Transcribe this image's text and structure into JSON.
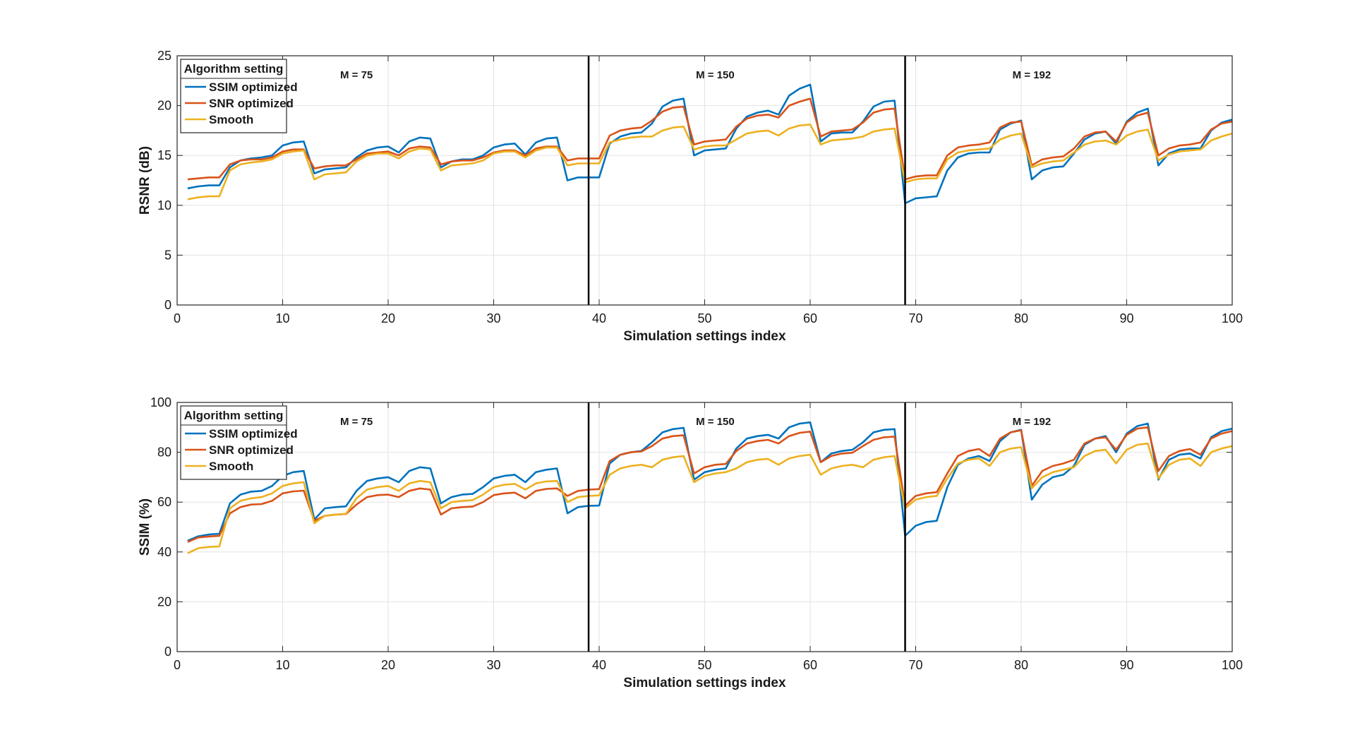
{
  "chart_data": [
    {
      "type": "line",
      "ylabel": "RSNR (dB)",
      "xlabel": "Simulation settings index",
      "xlim": [
        0,
        100
      ],
      "ylim": [
        0,
        25
      ],
      "xticks": [
        0,
        10,
        20,
        30,
        40,
        50,
        60,
        70,
        80,
        90,
        100
      ],
      "yticks": [
        0,
        5,
        10,
        15,
        20,
        25
      ],
      "grid": true,
      "legend": {
        "title": "Algorithm setting",
        "position": "top-left"
      },
      "vlines": [
        39,
        69
      ],
      "region_labels": [
        {
          "text": "M = 75",
          "x": 17
        },
        {
          "text": "M = 150",
          "x": 51
        },
        {
          "text": "M = 192",
          "x": 81
        }
      ],
      "x_start": 1,
      "series": [
        {
          "name": "SSIM optimized",
          "color": "#0072BD",
          "values": [
            11.7,
            11.9,
            12.0,
            12.0,
            13.8,
            14.5,
            14.7,
            14.8,
            15.0,
            16.0,
            16.3,
            16.4,
            13.2,
            13.6,
            13.7,
            13.8,
            14.8,
            15.5,
            15.8,
            15.9,
            15.3,
            16.4,
            16.8,
            16.7,
            13.8,
            14.4,
            14.6,
            14.6,
            15.0,
            15.8,
            16.1,
            16.2,
            15.1,
            16.3,
            16.7,
            16.8,
            12.5,
            12.8,
            12.8,
            12.8,
            16.2,
            16.9,
            17.2,
            17.3,
            18.2,
            19.9,
            20.5,
            20.7,
            15.0,
            15.5,
            15.6,
            15.7,
            17.7,
            18.9,
            19.3,
            19.5,
            19.1,
            21.0,
            21.7,
            22.1,
            16.4,
            17.2,
            17.3,
            17.3,
            18.4,
            19.9,
            20.4,
            20.5,
            10.2,
            10.7,
            10.8,
            10.9,
            13.5,
            14.8,
            15.2,
            15.3,
            15.3,
            17.6,
            18.2,
            18.5,
            12.6,
            13.5,
            13.8,
            13.9,
            15.2,
            16.6,
            17.2,
            17.4,
            16.2,
            18.4,
            19.3,
            19.7,
            14.0,
            15.2,
            15.6,
            15.7,
            15.7,
            17.5,
            18.3,
            18.6
          ]
        },
        {
          "name": "SNR optimized",
          "color": "#D95319",
          "values": [
            12.6,
            12.7,
            12.8,
            12.8,
            14.1,
            14.5,
            14.6,
            14.6,
            14.8,
            15.4,
            15.6,
            15.6,
            13.7,
            13.9,
            14.0,
            14.0,
            14.6,
            15.2,
            15.3,
            15.4,
            15.0,
            15.7,
            15.9,
            15.8,
            14.1,
            14.4,
            14.5,
            14.5,
            14.8,
            15.3,
            15.5,
            15.5,
            15.0,
            15.7,
            15.9,
            15.9,
            14.5,
            14.7,
            14.7,
            14.7,
            17.0,
            17.5,
            17.7,
            17.8,
            18.5,
            19.4,
            19.8,
            19.9,
            16.1,
            16.4,
            16.5,
            16.6,
            17.9,
            18.7,
            19.0,
            19.1,
            18.8,
            20.0,
            20.4,
            20.7,
            16.9,
            17.4,
            17.5,
            17.6,
            18.3,
            19.3,
            19.6,
            19.7,
            12.6,
            12.9,
            13.0,
            13.0,
            15.0,
            15.8,
            16.0,
            16.1,
            16.3,
            17.8,
            18.3,
            18.4,
            14.0,
            14.6,
            14.8,
            14.9,
            15.7,
            16.9,
            17.3,
            17.4,
            16.4,
            18.3,
            19.0,
            19.3,
            15.0,
            15.7,
            16.0,
            16.1,
            16.3,
            17.6,
            18.2,
            18.4
          ]
        },
        {
          "name": "Smooth",
          "color": "#EDB120",
          "values": [
            10.6,
            10.8,
            10.9,
            10.9,
            13.5,
            14.1,
            14.3,
            14.4,
            14.6,
            15.2,
            15.4,
            15.5,
            12.6,
            13.1,
            13.2,
            13.3,
            14.4,
            15.0,
            15.2,
            15.2,
            14.7,
            15.4,
            15.7,
            15.6,
            13.5,
            14.0,
            14.1,
            14.2,
            14.5,
            15.2,
            15.4,
            15.4,
            14.8,
            15.5,
            15.8,
            15.8,
            14.0,
            14.2,
            14.2,
            14.2,
            16.3,
            16.6,
            16.8,
            16.9,
            16.9,
            17.5,
            17.8,
            17.9,
            15.6,
            15.9,
            16.0,
            16.0,
            16.6,
            17.2,
            17.4,
            17.5,
            17.0,
            17.7,
            18.0,
            18.1,
            16.1,
            16.5,
            16.6,
            16.7,
            16.9,
            17.4,
            17.6,
            17.7,
            12.3,
            12.6,
            12.7,
            12.7,
            14.6,
            15.3,
            15.5,
            15.6,
            15.7,
            16.6,
            17.0,
            17.2,
            13.8,
            14.2,
            14.4,
            14.5,
            15.3,
            16.1,
            16.4,
            16.5,
            16.1,
            17.0,
            17.4,
            17.6,
            14.5,
            15.1,
            15.4,
            15.5,
            15.6,
            16.5,
            16.9,
            17.2
          ]
        }
      ]
    },
    {
      "type": "line",
      "ylabel": "SSIM (%)",
      "xlabel": "Simulation settings index",
      "xlim": [
        0,
        100
      ],
      "ylim": [
        0,
        100
      ],
      "xticks": [
        0,
        10,
        20,
        30,
        40,
        50,
        60,
        70,
        80,
        90,
        100
      ],
      "yticks": [
        0,
        20,
        40,
        60,
        80,
        100
      ],
      "grid": true,
      "legend": {
        "title": "Algorithm setting",
        "position": "top-left"
      },
      "vlines": [
        39,
        69
      ],
      "region_labels": [
        {
          "text": "M = 75",
          "x": 17
        },
        {
          "text": "M = 150",
          "x": 51
        },
        {
          "text": "M = 192",
          "x": 81
        }
      ],
      "x_start": 1,
      "series": [
        {
          "name": "SSIM optimized",
          "color": "#0072BD",
          "values": [
            44.5,
            46.3,
            47.0,
            47.3,
            59.5,
            63.0,
            64.2,
            64.5,
            66.5,
            70.5,
            72.0,
            72.5,
            53.0,
            57.5,
            58.0,
            58.3,
            64.5,
            68.5,
            69.5,
            70.0,
            68.0,
            72.5,
            74.0,
            73.5,
            59.5,
            62.0,
            63.0,
            63.3,
            66.0,
            69.5,
            70.5,
            71.0,
            68.0,
            72.0,
            73.0,
            73.5,
            55.5,
            58.0,
            58.5,
            58.6,
            75.5,
            79.0,
            80.0,
            80.5,
            84.0,
            88.0,
            89.3,
            89.8,
            69.0,
            72.0,
            73.0,
            73.5,
            81.5,
            85.5,
            86.5,
            87.0,
            85.5,
            90.0,
            91.5,
            92.0,
            76.0,
            79.5,
            80.5,
            81.0,
            84.0,
            88.0,
            89.0,
            89.3,
            46.5,
            50.5,
            52.0,
            52.5,
            66.0,
            75.0,
            77.5,
            78.5,
            76.5,
            84.5,
            88.0,
            89.0,
            61.0,
            67.0,
            70.0,
            71.0,
            74.5,
            83.0,
            85.5,
            86.5,
            80.0,
            87.5,
            90.5,
            91.5,
            69.0,
            77.0,
            79.0,
            79.5,
            77.5,
            86.0,
            88.5,
            89.5
          ]
        },
        {
          "name": "SNR optimized",
          "color": "#D95319",
          "values": [
            44.0,
            45.8,
            46.2,
            46.5,
            55.5,
            58.0,
            59.0,
            59.2,
            60.5,
            63.5,
            64.3,
            64.6,
            52.5,
            54.5,
            55.0,
            55.2,
            59.0,
            62.0,
            62.8,
            63.0,
            62.0,
            64.5,
            65.5,
            65.0,
            55.0,
            57.5,
            58.0,
            58.2,
            60.0,
            62.8,
            63.5,
            63.8,
            61.5,
            64.5,
            65.3,
            65.5,
            62.5,
            64.5,
            65.0,
            65.2,
            76.5,
            79.0,
            80.0,
            80.3,
            82.5,
            85.5,
            86.5,
            86.8,
            71.5,
            74.0,
            75.0,
            75.3,
            80.5,
            83.5,
            84.5,
            85.0,
            83.5,
            86.5,
            87.8,
            88.3,
            76.0,
            78.5,
            79.5,
            79.8,
            82.5,
            85.0,
            86.0,
            86.3,
            58.5,
            62.5,
            63.5,
            64.0,
            71.5,
            78.5,
            80.5,
            81.3,
            78.5,
            85.5,
            88.0,
            88.8,
            66.5,
            72.5,
            74.5,
            75.5,
            77.0,
            83.5,
            85.5,
            86.0,
            81.0,
            87.0,
            89.5,
            90.0,
            72.5,
            78.5,
            80.5,
            81.3,
            79.0,
            85.5,
            87.5,
            88.5
          ]
        },
        {
          "name": "Smooth",
          "color": "#EDB120",
          "values": [
            39.5,
            41.5,
            42.0,
            42.2,
            57.5,
            60.5,
            61.5,
            62.0,
            63.5,
            66.5,
            67.5,
            68.0,
            51.5,
            54.5,
            55.0,
            55.3,
            61.5,
            65.0,
            66.0,
            66.5,
            64.5,
            67.5,
            68.5,
            68.0,
            57.5,
            60.0,
            60.5,
            60.8,
            63.0,
            66.0,
            67.0,
            67.3,
            65.0,
            67.5,
            68.3,
            68.5,
            60.0,
            62.0,
            62.5,
            62.7,
            71.0,
            73.5,
            74.5,
            75.0,
            74.0,
            77.0,
            78.0,
            78.5,
            68.0,
            70.5,
            71.5,
            72.0,
            73.5,
            76.0,
            77.0,
            77.3,
            75.0,
            77.5,
            78.5,
            79.0,
            71.0,
            73.5,
            74.5,
            75.0,
            74.0,
            77.0,
            78.0,
            78.5,
            57.5,
            61.0,
            62.0,
            62.5,
            69.5,
            75.5,
            77.0,
            77.5,
            74.5,
            80.0,
            81.5,
            82.0,
            65.5,
            70.0,
            72.0,
            73.0,
            74.0,
            78.5,
            80.5,
            81.0,
            75.5,
            81.0,
            83.0,
            83.5,
            69.5,
            75.0,
            77.0,
            77.5,
            74.5,
            80.0,
            81.5,
            82.5
          ]
        }
      ]
    }
  ]
}
